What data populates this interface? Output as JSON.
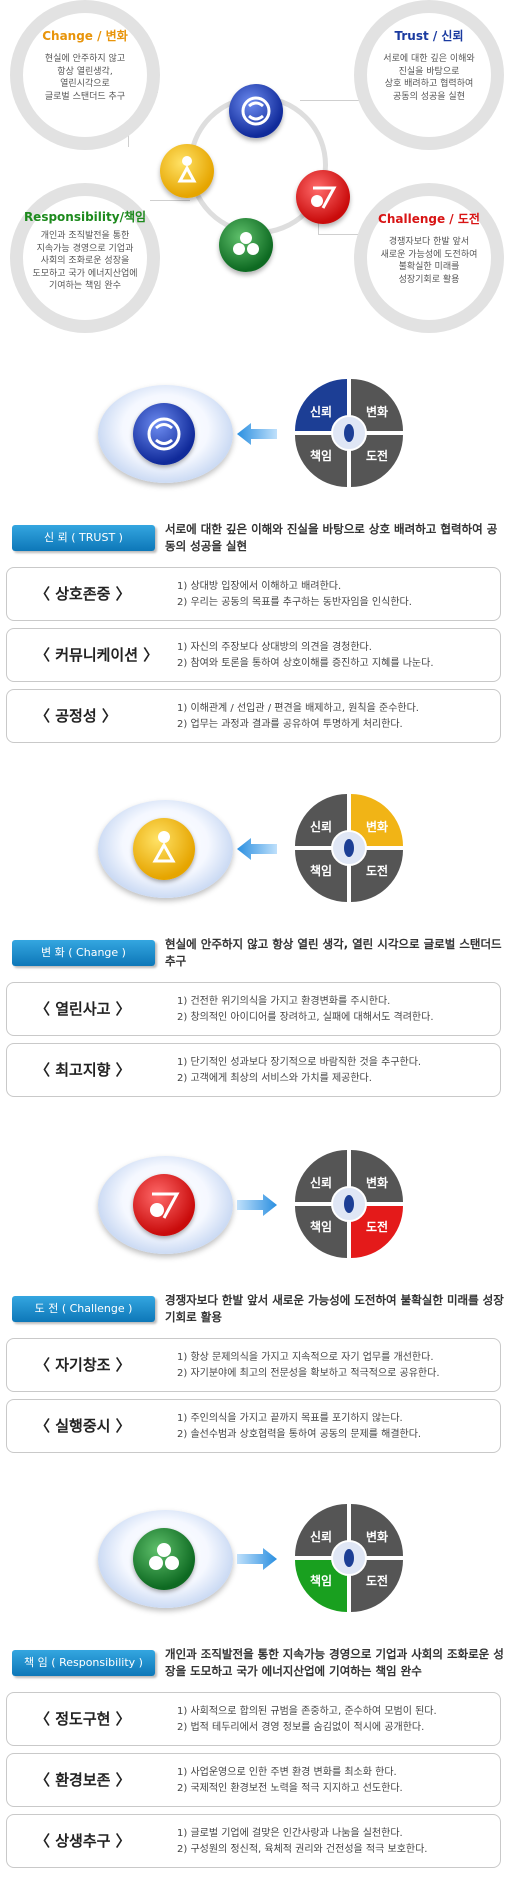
{
  "values_diagram": {
    "change": {
      "title": "Change / 변화",
      "desc": "현실에 안주하지 않고\n항상 열린생각,\n열린시각으로\n글로벌 스탠더드 추구",
      "color": "#e8940a"
    },
    "trust": {
      "title": "Trust / 신뢰",
      "desc": "서로에 대한 깊은 이해와\n진실을 바탕으로\n상호 배려하고 협력하여\n공동의 성공을 실현",
      "color": "#1a3aa0"
    },
    "responsibility": {
      "title": "Responsibility/책임",
      "desc": "개인과 조직발전을 통한\n지속가능 경영으로 기업과\n사회의 조화로운 성장을\n도모하고 국가 에너지산업에\n기여하는 책임 완수",
      "color": "#1d8a1d"
    },
    "challenge": {
      "title": "Challenge / 도전",
      "desc": "경쟁자보다 한발 앞서\n새로운 가능성에 도전하여\n불확실한 미래를\n성장기회로 활용",
      "color": "#d81515"
    }
  },
  "wheel_labels": {
    "trust": "신뢰",
    "change": "변화",
    "responsibility": "책임",
    "challenge": "도전"
  },
  "sections": [
    {
      "badge": "신 뢰 ( TRUST )",
      "text": "서로에 대한 깊은 이해와 진실을 바탕으로 상호 배려하고 협력하여 공동의 성공을 실현",
      "items": [
        {
          "key": "〈 상호존중 〉",
          "lines": "1) 상대방 입장에서 이해하고 배려한다.\n2) 우리는 공동의 목표를 추구하는 동반자임을 인식한다."
        },
        {
          "key": "〈 커뮤니케이션 〉",
          "lines": "1) 자신의 주장보다 상대방의 의견을 경청한다.\n2) 참여와 토론을 통하여 상호이해를 증진하고 지혜를 나눈다."
        },
        {
          "key": "〈 공정성 〉",
          "lines": "1) 이해관계 / 선입관 / 편견을 배제하고, 원칙을 준수한다.\n2) 업무는 과정과 결과를 공유하여 투명하게 처리한다."
        }
      ]
    },
    {
      "badge": "변 화 ( Change )",
      "text": "현실에 안주하지 않고 항상 열린 생각, 열린 시각으로 글로벌 스탠더드 추구",
      "items": [
        {
          "key": "〈 열린사고 〉",
          "lines": "1) 건전한 위기의식을 가지고 환경변화를 주시한다.\n2) 창의적인 아이디어를 장려하고, 실패에 대해서도 격려한다."
        },
        {
          "key": "〈 최고지향 〉",
          "lines": "1) 단기적인 성과보다 장기적으로 바람직한 것을 추구한다.\n2) 고객에게 최상의 서비스와 가치를 제공한다."
        }
      ]
    },
    {
      "badge": "도 전 ( Challenge )",
      "text": "경쟁자보다 한발 앞서 새로운 가능성에 도전하여 불확실한 미래를 성장기회로 활용",
      "items": [
        {
          "key": "〈 자기창조 〉",
          "lines": "1) 항상 문제의식을 가지고 지속적으로 자기 업무를 개선한다.\n2) 자기분야에 최고의 전문성을 확보하고 적극적으로 공유한다."
        },
        {
          "key": "〈 실행중시 〉",
          "lines": "1) 주인의식을 가지고 끝까지 목표를 포기하지 않는다.\n2) 솔선수범과 상호협력을 통하여 공동의 문제를 해결한다."
        }
      ]
    },
    {
      "badge": "책 임 ( Responsibility )",
      "text": "개인과 조직발전을 통한 지속가능 경영으로 기업과 사회의 조화로운 성장을 도모하고  국가 에너지산업에 기여하는 책임 완수",
      "items": [
        {
          "key": "〈 정도구현 〉",
          "lines": "1) 사회적으로 합의된 규범을 존중하고, 준수하여 모범이 된다.\n2) 법적 테두리에서 경영 정보를 숨김없이 적시에 공개한다."
        },
        {
          "key": "〈 환경보존 〉",
          "lines": "1) 사업운영으로 인한 주변 환경 변화를 최소화 한다.\n2) 국제적인 환경보전 노력을 적극 지지하고 선도한다."
        },
        {
          "key": "〈 상생추구 〉",
          "lines": "1) 글로벌 기업에 걸맞은 인간사랑과 나눔을 실천한다.\n2) 구성원의 정신적, 육체적 권리와 건전성을 적극 보호한다."
        }
      ]
    }
  ]
}
